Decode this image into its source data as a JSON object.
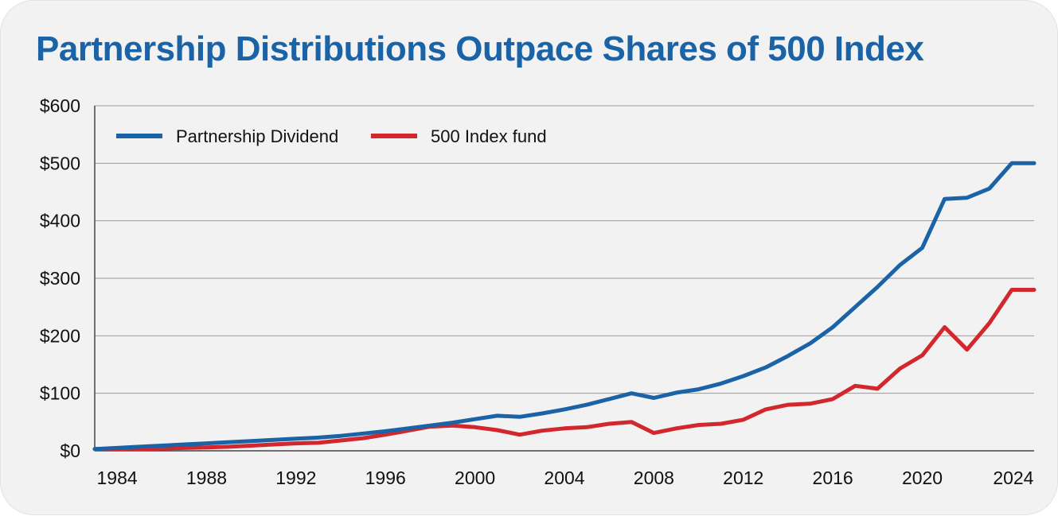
{
  "chart_data": {
    "type": "line",
    "title": "Partnership Distributions Outpace Shares of 500 Index",
    "xlabel": "",
    "ylabel": "",
    "xlim": [
      1983,
      2025
    ],
    "ylim": [
      0,
      600
    ],
    "y_ticks": [
      0,
      100,
      200,
      300,
      400,
      500,
      600
    ],
    "y_tick_labels": [
      "$0",
      "$100",
      "$200",
      "$300",
      "$400",
      "$500",
      "$600"
    ],
    "x_ticks": [
      1984,
      1988,
      1992,
      1996,
      2000,
      2004,
      2008,
      2012,
      2016,
      2020,
      2024
    ],
    "x_tick_labels": [
      "1984",
      "1988",
      "1992",
      "1996",
      "2000",
      "2004",
      "2008",
      "2012",
      "2016",
      "2020",
      "2024"
    ],
    "grid": "horizontal",
    "legend_position": "top-left",
    "x": [
      1983,
      1984,
      1985,
      1986,
      1987,
      1988,
      1989,
      1990,
      1991,
      1992,
      1993,
      1994,
      1995,
      1996,
      1997,
      1998,
      1999,
      2000,
      2001,
      2002,
      2003,
      2004,
      2005,
      2006,
      2007,
      2008,
      2009,
      2010,
      2011,
      2012,
      2013,
      2014,
      2015,
      2016,
      2017,
      2018,
      2019,
      2020,
      2021,
      2022,
      2023,
      2024,
      2025
    ],
    "series": [
      {
        "name": "Partnership Dividend",
        "color": "#1b63a7",
        "values": [
          3,
          5,
          7,
          9,
          11,
          13,
          15,
          17,
          19,
          21,
          23,
          26,
          30,
          34,
          39,
          44,
          49,
          55,
          61,
          59,
          65,
          72,
          80,
          90,
          100,
          92,
          101,
          107,
          117,
          130,
          145,
          165,
          187,
          215,
          250,
          285,
          323,
          353,
          438,
          440,
          456,
          500,
          500
        ]
      },
      {
        "name": "500 Index fund",
        "color": "#d1272d",
        "values": [
          3,
          3,
          3,
          4,
          5,
          6,
          7,
          9,
          11,
          13,
          14,
          18,
          22,
          28,
          35,
          42,
          44,
          41,
          36,
          28,
          35,
          39,
          41,
          47,
          50,
          31,
          39,
          45,
          47,
          54,
          72,
          80,
          82,
          90,
          113,
          108,
          143,
          166,
          215,
          176,
          222,
          280,
          280
        ]
      }
    ]
  }
}
